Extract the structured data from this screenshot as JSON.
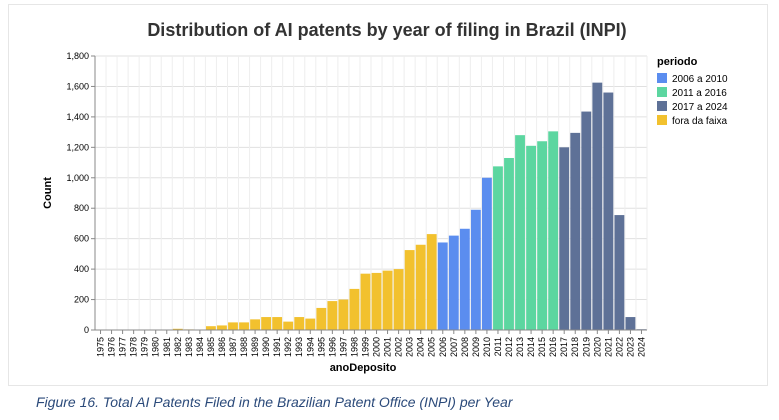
{
  "caption": "Figure 16. Total AI Patents Filed in the Brazilian Patent Office (INPI) per Year",
  "chart_data": {
    "type": "bar",
    "title": "Distribution of AI patents by year of filing in Brazil (INPI)",
    "xlabel": "anoDeposito",
    "ylabel": "Count",
    "ylim": [
      0,
      1800
    ],
    "yticks": [
      0,
      200,
      400,
      600,
      800,
      1000,
      1200,
      1400,
      1600,
      1800
    ],
    "ytick_labels": [
      "0",
      "200",
      "400",
      "600",
      "800",
      "1,000",
      "1,200",
      "1,400",
      "1,600",
      "1,800"
    ],
    "grid": true,
    "legend": {
      "title": "periodo",
      "placement": "top-right",
      "entries": [
        {
          "label": "2006 a 2010",
          "color": "#5b8def"
        },
        {
          "label": "2011 a 2016",
          "color": "#5cd6a0"
        },
        {
          "label": "2017 a 2024",
          "color": "#5e7197"
        },
        {
          "label": "fora da faixa",
          "color": "#f2c12e"
        }
      ]
    },
    "categories": [
      "1975",
      "1976",
      "1977",
      "1978",
      "1979",
      "1980",
      "1981",
      "1982",
      "1983",
      "1984",
      "1985",
      "1986",
      "1987",
      "1988",
      "1989",
      "1990",
      "1991",
      "1992",
      "1993",
      "1994",
      "1995",
      "1996",
      "1997",
      "1998",
      "1999",
      "2000",
      "2001",
      "2002",
      "2003",
      "2004",
      "2005",
      "2006",
      "2007",
      "2008",
      "2009",
      "2010",
      "2011",
      "2012",
      "2013",
      "2014",
      "2015",
      "2016",
      "2017",
      "2018",
      "2019",
      "2020",
      "2021",
      "2022",
      "2023",
      "2024"
    ],
    "values": [
      1,
      2,
      3,
      1,
      2,
      2,
      3,
      8,
      4,
      3,
      25,
      30,
      50,
      50,
      70,
      85,
      85,
      55,
      85,
      75,
      145,
      190,
      200,
      270,
      370,
      375,
      390,
      400,
      525,
      560,
      630,
      575,
      620,
      665,
      790,
      1000,
      1075,
      1130,
      1280,
      1210,
      1240,
      1305,
      1200,
      1295,
      1435,
      1625,
      1560,
      755,
      85,
      5
    ],
    "periodo": [
      "fora da faixa",
      "fora da faixa",
      "fora da faixa",
      "fora da faixa",
      "fora da faixa",
      "fora da faixa",
      "fora da faixa",
      "fora da faixa",
      "fora da faixa",
      "fora da faixa",
      "fora da faixa",
      "fora da faixa",
      "fora da faixa",
      "fora da faixa",
      "fora da faixa",
      "fora da faixa",
      "fora da faixa",
      "fora da faixa",
      "fora da faixa",
      "fora da faixa",
      "fora da faixa",
      "fora da faixa",
      "fora da faixa",
      "fora da faixa",
      "fora da faixa",
      "fora da faixa",
      "fora da faixa",
      "fora da faixa",
      "fora da faixa",
      "fora da faixa",
      "fora da faixa",
      "2006 a 2010",
      "2006 a 2010",
      "2006 a 2010",
      "2006 a 2010",
      "2006 a 2010",
      "2011 a 2016",
      "2011 a 2016",
      "2011 a 2016",
      "2011 a 2016",
      "2011 a 2016",
      "2011 a 2016",
      "2017 a 2024",
      "2017 a 2024",
      "2017 a 2024",
      "2017 a 2024",
      "2017 a 2024",
      "2017 a 2024",
      "2017 a 2024",
      "2017 a 2024"
    ]
  }
}
